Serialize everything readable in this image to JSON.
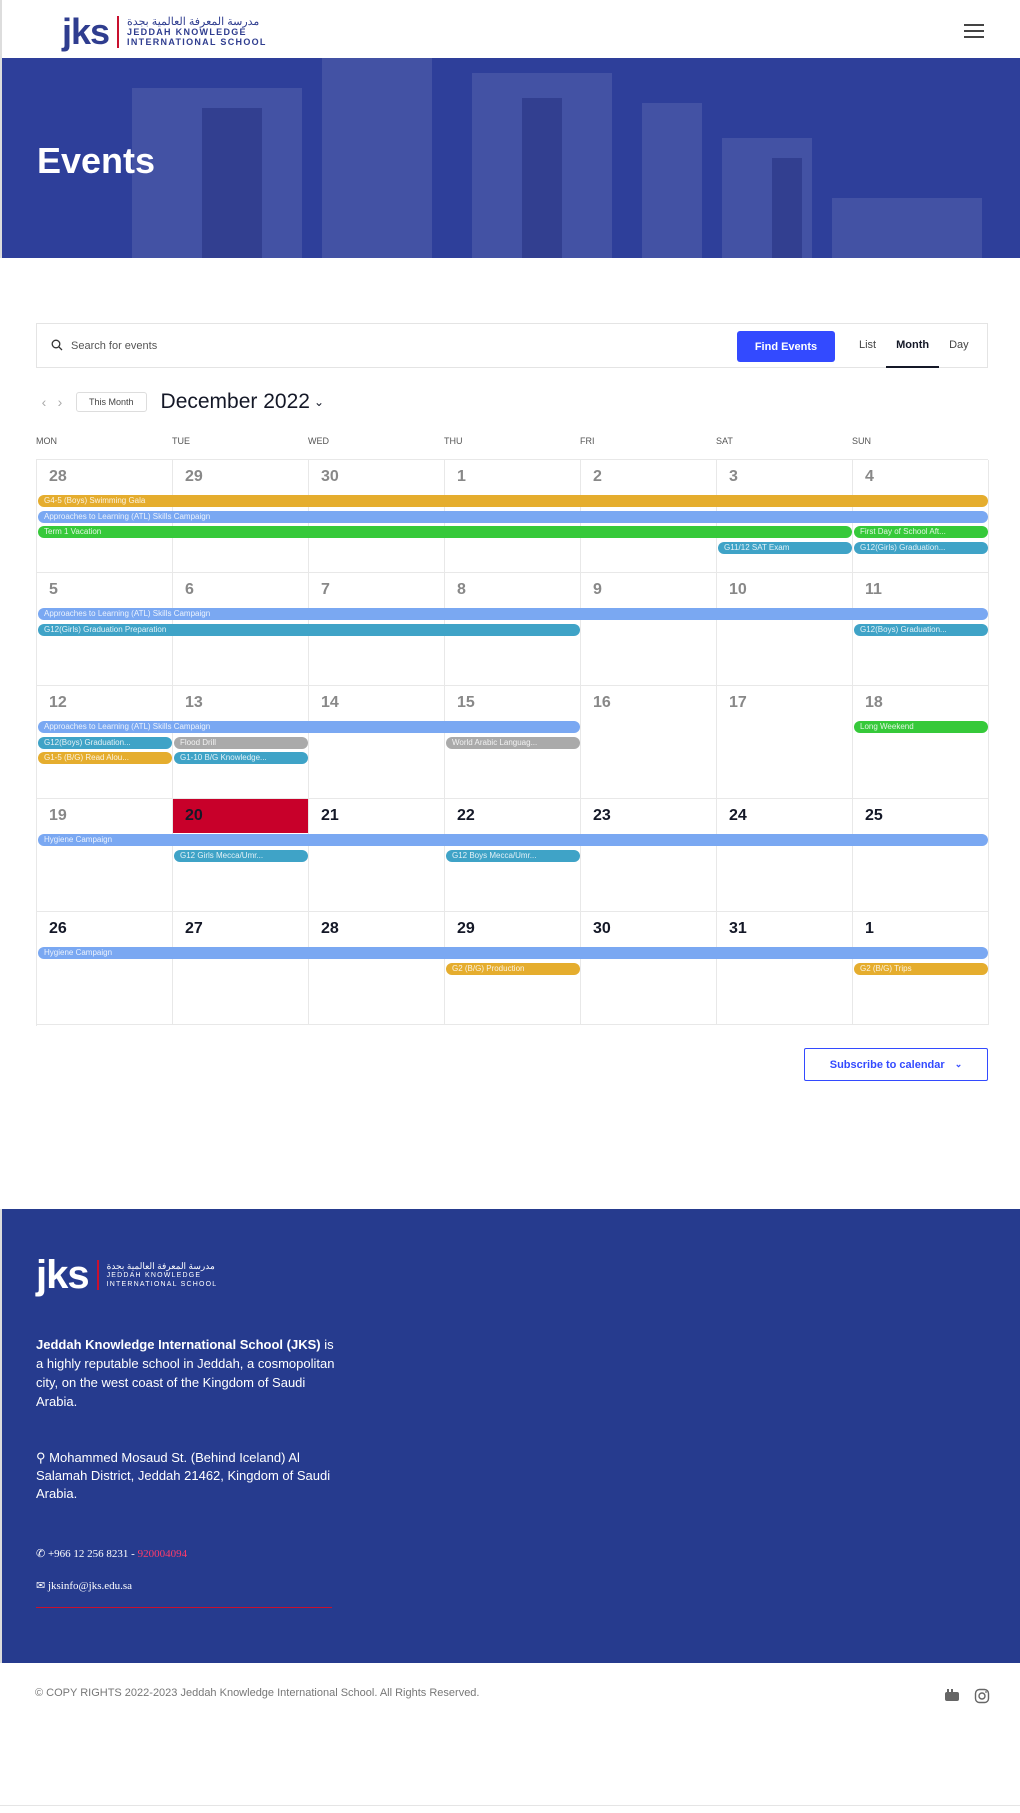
{
  "header": {
    "logo_mark": "jks",
    "logo_ar": "مدرسة المعرفة العالمية بجدة",
    "logo_en_1": "JEDDAH KNOWLEDGE",
    "logo_en_2": "INTERNATIONAL SCHOOL",
    "menu_icon": "hamburger-icon"
  },
  "hero": {
    "title": "Events"
  },
  "search": {
    "placeholder": "Search for events",
    "button": "Find Events",
    "views": [
      "List",
      "Month",
      "Day"
    ],
    "active_view": "Month"
  },
  "month_nav": {
    "this_month": "This Month",
    "title": "December 2022"
  },
  "calendar": {
    "weekdays": [
      "MON",
      "TUE",
      "WED",
      "THU",
      "FRI",
      "SAT",
      "SUN"
    ],
    "weeks": [
      [
        "28",
        "29",
        "30",
        "1",
        "2",
        "3",
        "4"
      ],
      [
        "5",
        "6",
        "7",
        "8",
        "9",
        "10",
        "11"
      ],
      [
        "12",
        "13",
        "14",
        "15",
        "16",
        "17",
        "18"
      ],
      [
        "19",
        "20",
        "21",
        "22",
        "23",
        "24",
        "25"
      ],
      [
        "26",
        "27",
        "28",
        "29",
        "30",
        "31",
        "1"
      ]
    ],
    "today": "20",
    "events": [
      {
        "title": "G4-5 (Boys) Swimming Gala",
        "color": "#e5ad2e"
      },
      {
        "title": "Approaches to Learning (ATL) Skills Campaign",
        "color": "#7aa8f2"
      },
      {
        "title": "Term 1 Vacation",
        "color": "#36c93a"
      },
      {
        "title": "First Day of School Aft...",
        "color": "#36c93a"
      },
      {
        "title": "G11/12 SAT Exam",
        "color": "#3fa3c7"
      },
      {
        "title": "G12(Girls) Graduation...",
        "color": "#3fa3c7"
      },
      {
        "title": "Approaches to Learning (ATL) Skills Campaign",
        "color": "#7aa8f2"
      },
      {
        "title": "G12(Girls) Graduation Preparation",
        "color": "#3fa3c7"
      },
      {
        "title": "G12(Boys) Graduation...",
        "color": "#3fa3c7"
      },
      {
        "title": "Approaches to Learning (ATL) Skills Campaign",
        "color": "#7aa8f2"
      },
      {
        "title": "Long Weekend",
        "color": "#36c93a"
      },
      {
        "title": "G12(Boys) Graduation...",
        "color": "#3fa3c7"
      },
      {
        "title": "Flood Drill",
        "color": "#aaaaaa"
      },
      {
        "title": "World Arabic Languag...",
        "color": "#aaaaaa"
      },
      {
        "title": "G1-5 (B/G) Read Alou...",
        "color": "#e5ad2e"
      },
      {
        "title": "G1-10 B/G Knowledge...",
        "color": "#3fa3c7"
      },
      {
        "title": "Hygiene Campaign",
        "color": "#7aa8f2"
      },
      {
        "title": "G12 Girls Mecca/Umr...",
        "color": "#3fa3c7"
      },
      {
        "title": "G12 Boys Mecca/Umr...",
        "color": "#3fa3c7"
      },
      {
        "title": "Hygiene Campaign",
        "color": "#7aa8f2"
      },
      {
        "title": "G2 (B/G) Production",
        "color": "#e5ad2e"
      },
      {
        "title": "G2 (B/G) Trips",
        "color": "#e5ad2e"
      }
    ]
  },
  "subscribe": {
    "label": "Subscribe to calendar"
  },
  "footer": {
    "about_bold": "Jeddah Knowledge International School (JKS)",
    "about_rest": " is a highly reputable school in Jeddah, a cosmopolitan city, on the west coast of the Kingdom of Saudi Arabia.",
    "address": "Mohammed Mosaud St. (Behind Iceland) Al Salamah District, Jeddah 21462, Kingdom of Saudi Arabia.",
    "phone": "+966 12 256 8231 - ",
    "phone_alt": "920004094",
    "email": "jksinfo@jks.edu.sa"
  },
  "copyright": "© COPY RIGHTS 2022-2023 Jeddah Knowledge International School. All Rights Reserved.",
  "colors": {
    "brand": "#2f3d8f",
    "accent": "#334aff",
    "today": "#c8002a",
    "footer": "#263b8e"
  }
}
